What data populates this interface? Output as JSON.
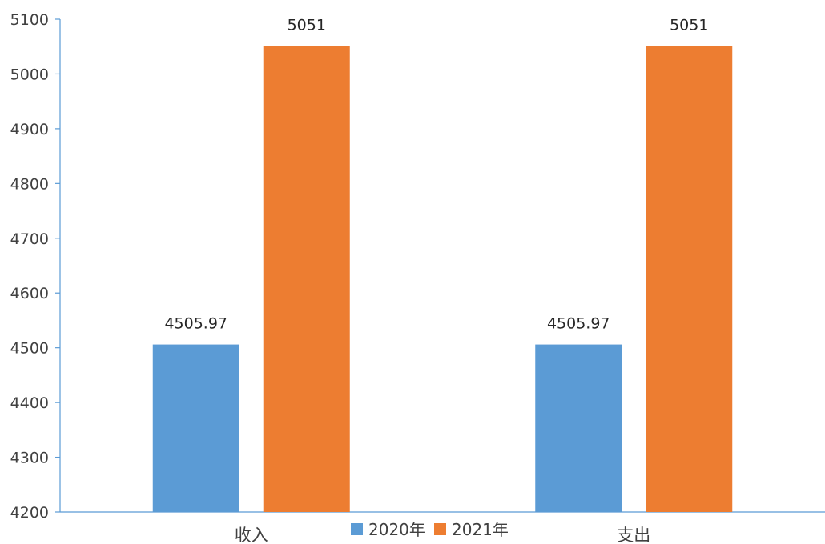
{
  "chart_data": {
    "type": "bar",
    "title": "",
    "xlabel": "",
    "ylabel": "",
    "categories": [
      "收入",
      "支出"
    ],
    "series": [
      {
        "name": "2020年",
        "color": "#5b9bd5",
        "values": [
          4505.97,
          4505.97
        ],
        "labels": [
          "4505.97",
          "4505.97"
        ]
      },
      {
        "name": "2021年",
        "color": "#ed7d31",
        "values": [
          5051,
          5051
        ],
        "labels": [
          "5051",
          "5051"
        ]
      }
    ],
    "ylim": [
      4200,
      5100
    ],
    "yticks": [
      4200,
      4300,
      4400,
      4500,
      4600,
      4700,
      4800,
      4900,
      5000,
      5100
    ],
    "grid": false,
    "legend": "bottom-center"
  }
}
